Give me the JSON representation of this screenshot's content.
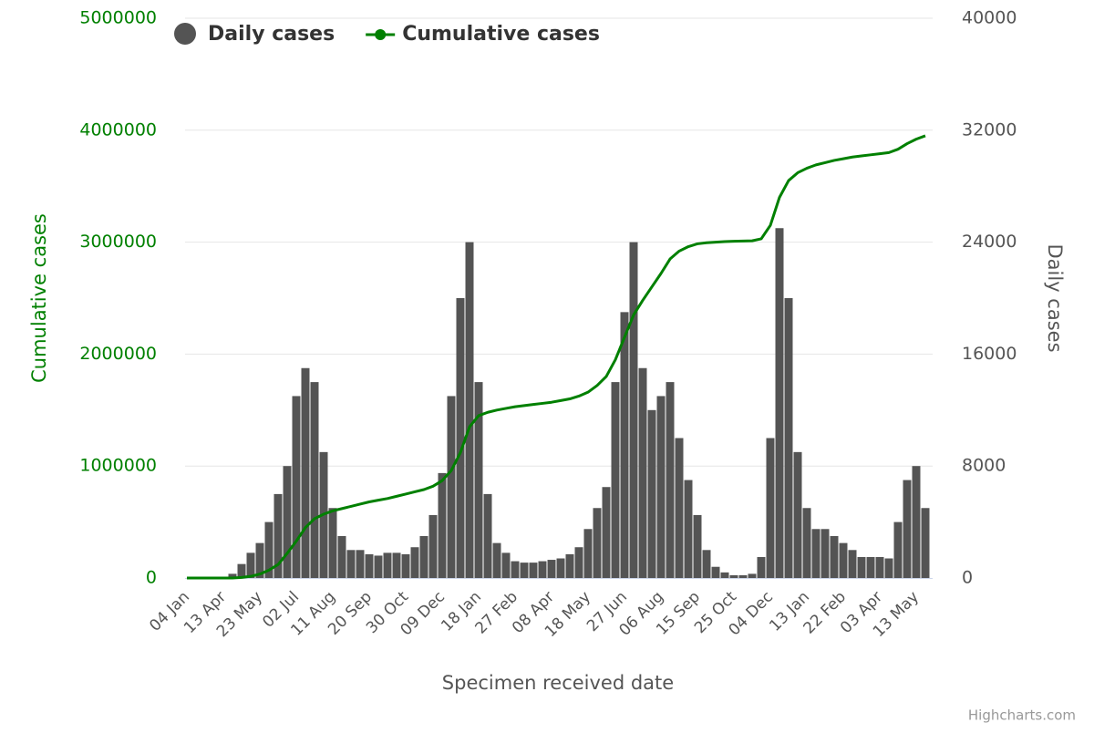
{
  "chart_data": {
    "type": "combo",
    "x_label": "Specimen received date",
    "y_label": "Cumulative cases",
    "y2_label": "Daily cases",
    "credits": "Highcharts.com",
    "categories": [
      "04 Jan",
      null,
      null,
      null,
      "13 Apr",
      null,
      null,
      null,
      "23 May",
      null,
      null,
      null,
      "02 Jul",
      null,
      null,
      null,
      "11 Aug",
      null,
      null,
      null,
      "20 Sep",
      null,
      null,
      null,
      "30 Oct",
      null,
      null,
      null,
      "09 Dec",
      null,
      null,
      null,
      "18 Jan",
      null,
      null,
      null,
      "27 Feb",
      null,
      null,
      null,
      "08 Apr",
      null,
      null,
      null,
      "18 May",
      null,
      null,
      null,
      "27 Jun",
      null,
      null,
      null,
      "06 Aug",
      null,
      null,
      null,
      "15 Sep",
      null,
      null,
      null,
      "25 Oct",
      null,
      null,
      null,
      "04 Dec",
      null,
      null,
      null,
      "13 Jan",
      null,
      null,
      null,
      "22 Feb",
      null,
      null,
      null,
      "03 Apr",
      null,
      null,
      null,
      "13 May",
      null
    ],
    "ylim": [
      0,
      5000000
    ],
    "yticks": [
      0,
      1000000,
      2000000,
      3000000,
      4000000,
      5000000
    ],
    "y2lim": [
      0,
      40000
    ],
    "y2ticks": [
      0,
      8000,
      16000,
      24000,
      32000,
      40000
    ],
    "grid": true,
    "legend": "top",
    "series": [
      {
        "name": "Daily cases",
        "type": "column",
        "color": "#545454",
        "axis": "y2",
        "values": [
          0,
          0,
          0,
          0,
          0,
          300,
          1000,
          1800,
          2500,
          4000,
          6000,
          8000,
          13000,
          15000,
          14000,
          9000,
          5000,
          3000,
          2000,
          2000,
          1700,
          1600,
          1800,
          1800,
          1700,
          2200,
          3000,
          4500,
          7500,
          13000,
          20000,
          24000,
          14000,
          6000,
          2500,
          1800,
          1200,
          1100,
          1100,
          1200,
          1300,
          1400,
          1700,
          2200,
          3500,
          5000,
          6500,
          14000,
          19000,
          24000,
          15000,
          12000,
          13000,
          14000,
          10000,
          7000,
          4500,
          2000,
          800,
          400,
          200,
          200,
          300,
          1500,
          10000,
          25000,
          20000,
          9000,
          5000,
          3500,
          3500,
          3000,
          2500,
          2000,
          1500,
          1500,
          1500,
          1400,
          4000,
          7000,
          8000,
          5000
        ]
      },
      {
        "name": "Cumulative cases",
        "type": "line",
        "color": "#008000",
        "values": [
          0,
          0,
          0,
          0,
          0,
          0,
          5000,
          15000,
          35000,
          70000,
          120000,
          220000,
          330000,
          450000,
          530000,
          570000,
          600000,
          620000,
          640000,
          660000,
          680000,
          695000,
          710000,
          730000,
          750000,
          770000,
          790000,
          820000,
          870000,
          960000,
          1120000,
          1350000,
          1450000,
          1480000,
          1500000,
          1515000,
          1530000,
          1540000,
          1550000,
          1560000,
          1570000,
          1585000,
          1600000,
          1625000,
          1660000,
          1720000,
          1800000,
          1950000,
          2150000,
          2350000,
          2480000,
          2600000,
          2720000,
          2850000,
          2920000,
          2960000,
          2985000,
          2995000,
          3000000,
          3005000,
          3008000,
          3010000,
          3012000,
          3030000,
          3150000,
          3400000,
          3550000,
          3620000,
          3660000,
          3690000,
          3710000,
          3730000,
          3745000,
          3760000,
          3770000,
          3780000,
          3790000,
          3800000,
          3830000,
          3880000,
          3920000,
          3950000
        ]
      }
    ]
  }
}
